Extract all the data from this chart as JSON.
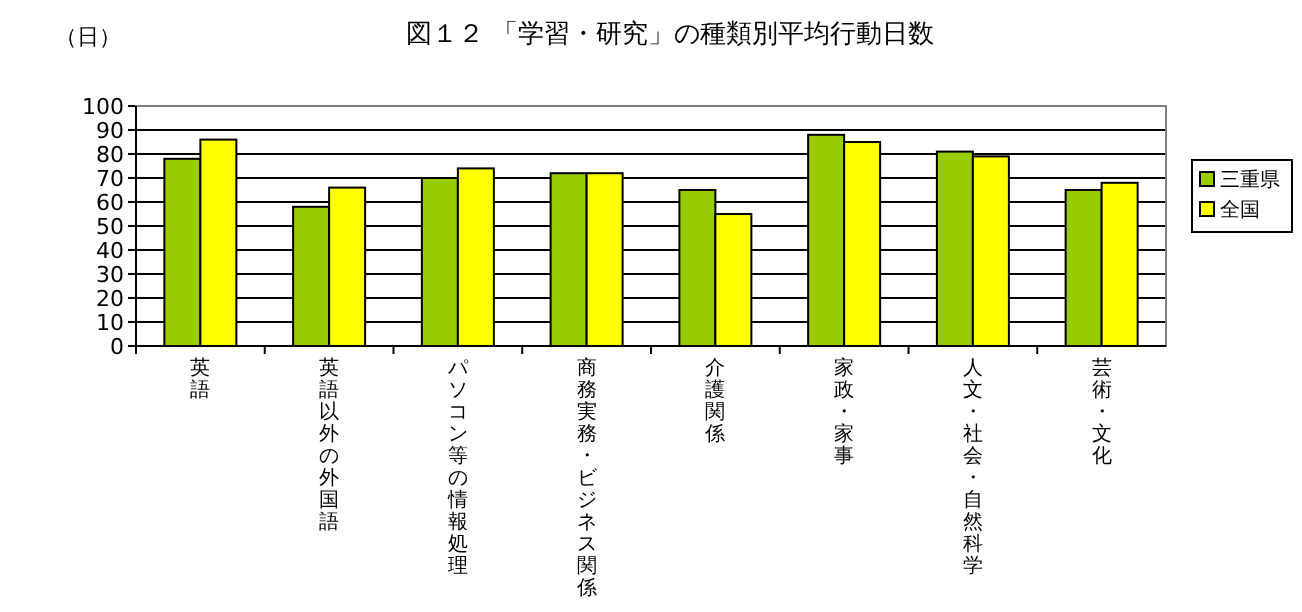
{
  "chart_data": {
    "type": "bar",
    "title": "図１２ 「学習・研究」の種類別平均行動日数",
    "ylabel": "（日）",
    "categories": [
      "英語",
      "英語以外の外国語",
      "パソコン等の情報処理",
      "商務実務・ビジネス関係",
      "介護関係",
      "家政・家事",
      "人文・社会・自然科学",
      "芸術・文化"
    ],
    "series": [
      {
        "name": "三重県",
        "color": "#99cc00",
        "values": [
          78,
          58,
          70,
          72,
          65,
          88,
          81,
          65
        ]
      },
      {
        "name": "全国",
        "color": "#ffff00",
        "values": [
          86,
          66,
          74,
          72,
          55,
          85,
          79,
          68
        ]
      }
    ],
    "ylim": [
      0,
      100
    ],
    "yticks": [
      0,
      10,
      20,
      30,
      40,
      50,
      60,
      70,
      80,
      90,
      100
    ],
    "grid": "y",
    "legend": "right"
  }
}
